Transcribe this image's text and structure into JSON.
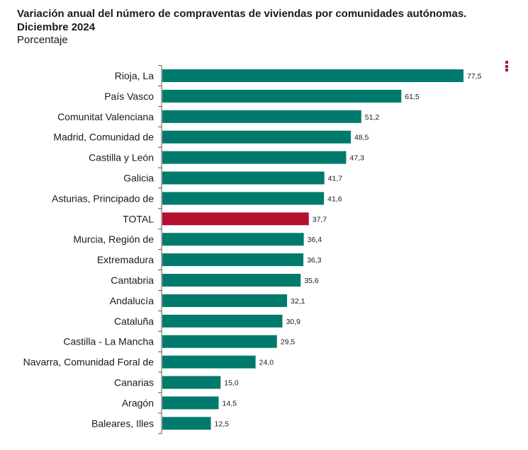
{
  "header": {
    "title": "Variación anual del número de compraventas de viviendas por comunidades autónomas. Diciembre 2024",
    "subtitle": "Porcentaje"
  },
  "toolbar": {
    "menu_icon": "kebab-menu-icon"
  },
  "colors": {
    "bar": "#007a6c",
    "highlight": "#b5102f",
    "axis": "#555555"
  },
  "chart_data": {
    "type": "bar",
    "orientation": "horizontal",
    "title": "Variación anual del número de compraventas de viviendas por comunidades autónomas. Diciembre 2024",
    "subtitle": "Porcentaje",
    "categories": [
      "Rioja, La",
      "País Vasco",
      "Comunitat Valenciana",
      "Madrid, Comunidad de",
      "Castilla y León",
      "Galicia",
      "Asturias, Principado de",
      "TOTAL",
      "Murcia, Región de",
      "Extremadura",
      "Cantabria",
      "Andalucía",
      "Cataluña",
      "Castilla - La Mancha",
      "Navarra, Comunidad Foral de",
      "Canarias",
      "Aragón",
      "Baleares, Illes"
    ],
    "values": [
      77.5,
      61.5,
      51.2,
      48.5,
      47.3,
      41.7,
      41.6,
      37.7,
      36.4,
      36.3,
      35.6,
      32.1,
      30.9,
      29.5,
      24.0,
      15.0,
      14.5,
      12.5
    ],
    "value_labels": [
      "77,5",
      "61,5",
      "51,2",
      "48,5",
      "47,3",
      "41,7",
      "41,6",
      "37,7",
      "36,4",
      "36,3",
      "35,6",
      "32,1",
      "30,9",
      "29,5",
      "24,0",
      "15,0",
      "14,5",
      "12,5"
    ],
    "highlight_category": "TOTAL",
    "xlim": [
      0,
      77.5
    ],
    "grid": false,
    "legend": "none"
  }
}
